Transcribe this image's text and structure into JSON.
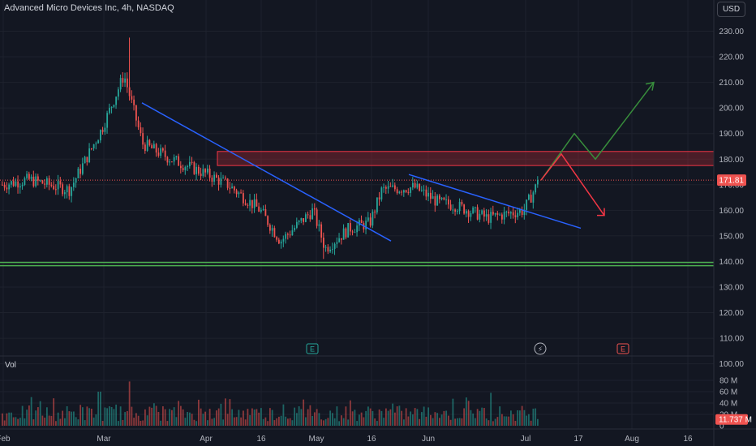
{
  "header": {
    "title": "Advanced Micro Devices Inc, 4h, NASDAQ",
    "currency": "USD"
  },
  "price_axis": {
    "ticks": [
      "230.00",
      "220.00",
      "210.00",
      "200.00",
      "190.00",
      "180.00",
      "170.00",
      "160.00",
      "150.00",
      "140.00",
      "130.00",
      "120.00",
      "110.00",
      "100.00"
    ],
    "last_price_label": "171.81",
    "last_price": 171.81
  },
  "volume_axis": {
    "ticks": [
      "80 M",
      "60 M",
      "40 M",
      "20 M",
      "0"
    ],
    "last_volume_label": "11.737 M"
  },
  "volume_pane": {
    "label": "Vol"
  },
  "time_axis": {
    "labels": [
      "Feb",
      "Mar",
      "Apr",
      "16",
      "May",
      "16",
      "Jun",
      "Jul",
      "17",
      "Aug",
      "16"
    ]
  },
  "event_markers": {
    "earnings_1": "E",
    "earnings_2": "E",
    "dividend": "⚡"
  },
  "colors": {
    "background": "#131722",
    "up": "#26a69a",
    "down": "#ef5350",
    "trendline": "#2962ff",
    "support": "#4caf50",
    "resistance_zone": "#b22833",
    "arrow_up": "#388e3c",
    "arrow_down": "#f23645"
  },
  "chart_data": {
    "type": "candlestick",
    "symbol": "AMD",
    "timeframe": "4h",
    "exchange": "NASDAQ",
    "ylim": [
      100,
      235
    ],
    "last_price": 171.81,
    "resistance_zone": [
      177.5,
      183
    ],
    "support_level": 139,
    "price_path_waypoints": [
      {
        "x": "Feb",
        "close": 170
      },
      {
        "x": "Feb (late)",
        "close": 172
      },
      {
        "x": "Feb (end)",
        "close": 168
      },
      {
        "x": "Mar",
        "close": 192
      },
      {
        "x": "Mar (peak)",
        "close": 213
      },
      {
        "x": "Mar (mid)",
        "close": 186
      },
      {
        "x": "Mar (late)",
        "close": 180
      },
      {
        "x": "Apr",
        "close": 174
      },
      {
        "x": "Apr (early)",
        "close": 170
      },
      {
        "x": "16",
        "close": 160
      },
      {
        "x": "16 (after)",
        "close": 148
      },
      {
        "x": "Apr (end)",
        "close": 160
      },
      {
        "x": "May",
        "close": 145
      },
      {
        "x": "May (mid)",
        "close": 153
      },
      {
        "x": "16",
        "close": 155
      },
      {
        "x": "16 (after)",
        "close": 168
      },
      {
        "x": "Jun (early)",
        "close": 169
      },
      {
        "x": "Jun",
        "close": 163
      },
      {
        "x": "Jun (mid)",
        "close": 162
      },
      {
        "x": "Jun (late)",
        "close": 157
      },
      {
        "x": "Jul",
        "close": 160
      },
      {
        "x": "Jul (latest)",
        "close": 171.81
      }
    ],
    "annotations": {
      "trendline_1": {
        "from": {
          "x": "Mar (mid)",
          "price": 202
        },
        "to": {
          "x": "16 (May)",
          "price": 153
        }
      },
      "trendline_2": {
        "from": {
          "x": "Jun (early)",
          "price": 174
        },
        "to": {
          "x": "Jul (after)",
          "price": 163
        }
      },
      "projection_up": [
        171.81,
        190,
        180,
        210
      ],
      "projection_down": [
        171.81,
        182,
        158
      ]
    }
  }
}
